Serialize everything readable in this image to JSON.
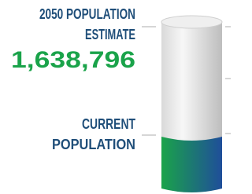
{
  "estimate_label": {
    "line1": "2050 POPULATION",
    "line2": "ESTIMATE"
  },
  "estimate_value": "1,638,796",
  "current_label": {
    "line1": "CURRENT",
    "line2": "POPULATION"
  }
}
